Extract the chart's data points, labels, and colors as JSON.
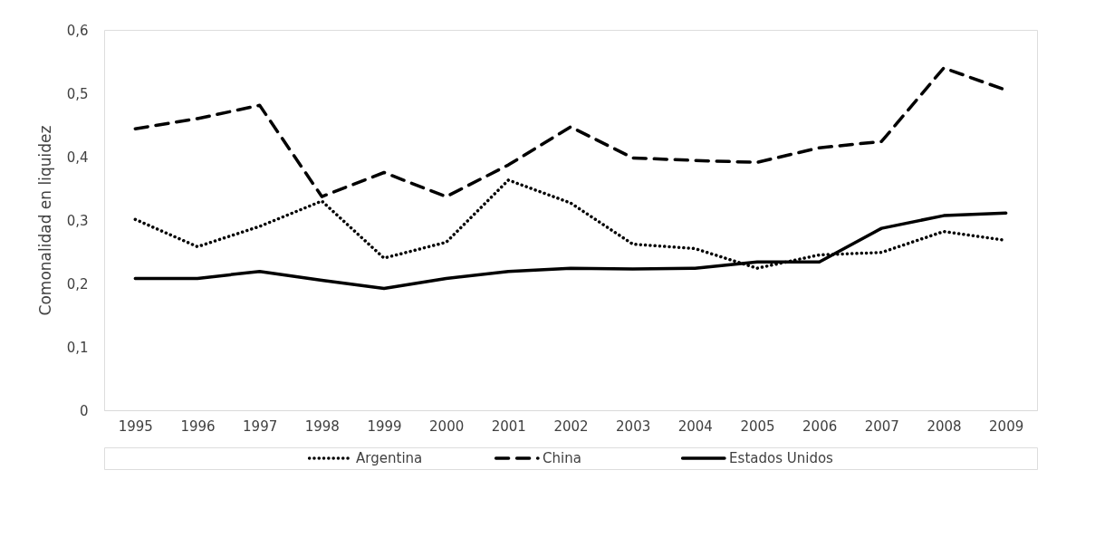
{
  "chart_data": {
    "type": "line",
    "ylabel": "Comonalidad en liquidez",
    "categories": [
      "1995",
      "1996",
      "1997",
      "1998",
      "1999",
      "2000",
      "2001",
      "2002",
      "2003",
      "2004",
      "2005",
      "2006",
      "2007",
      "2008",
      "2009"
    ],
    "series": [
      {
        "name": "Argentina",
        "color": "#000000",
        "line_style": "dotted",
        "values": [
          0.301,
          0.258,
          0.29,
          0.33,
          0.24,
          0.265,
          0.363,
          0.327,
          0.262,
          0.255,
          0.224,
          0.245,
          0.249,
          0.282,
          0.268
        ]
      },
      {
        "name": "China",
        "color": "#000000",
        "line_style": "dashed",
        "values": [
          0.444,
          0.46,
          0.481,
          0.337,
          0.375,
          0.337,
          0.387,
          0.447,
          0.398,
          0.394,
          0.391,
          0.414,
          0.424,
          0.54,
          0.505
        ]
      },
      {
        "name": "Estados Unidos",
        "color": "#000000",
        "line_style": "solid",
        "values": [
          0.208,
          0.208,
          0.219,
          0.205,
          0.192,
          0.208,
          0.219,
          0.224,
          0.223,
          0.224,
          0.234,
          0.234,
          0.287,
          0.307,
          0.311
        ]
      }
    ],
    "ylim": [
      0,
      0.6
    ],
    "yticks": [
      0,
      {
        "value": 0.1,
        "label": "0,1"
      },
      {
        "value": 0.2,
        "label": "0,2"
      },
      {
        "value": 0.3,
        "label": "0,3"
      },
      {
        "value": 0.4,
        "label": "0,4"
      },
      {
        "value": 0.5,
        "label": "0,5"
      },
      {
        "value": 0.6,
        "label": "0,6"
      }
    ],
    "grid": false,
    "legend": "bottom",
    "marker": "none"
  }
}
